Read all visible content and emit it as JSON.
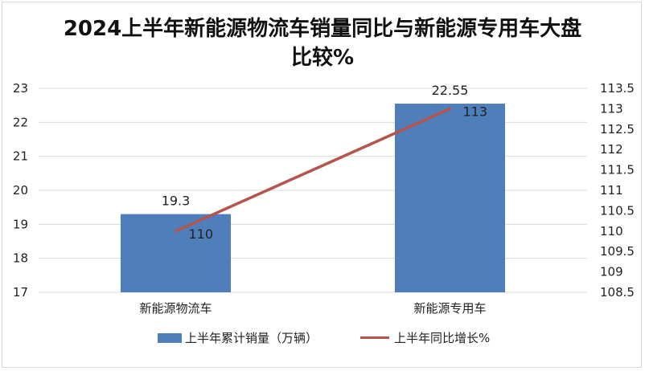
{
  "title_line1": "2024上半年新能源物流车销量同比与新能源专用车大盘",
  "title_line2": "比较%",
  "colors": {
    "bar": "#4f7fba",
    "line": "#b5544b",
    "grid": "#d9d9d9"
  },
  "chart_data": {
    "type": "bar",
    "categories": [
      "新能源物流车",
      "新能源专用车"
    ],
    "series": [
      {
        "name": "上半年累计销量（万辆）",
        "type": "bar",
        "axis": "left",
        "values": [
          19.3,
          22.55
        ],
        "labels": [
          "19.3",
          "22.55"
        ]
      },
      {
        "name": "上半年同比增长%",
        "type": "line",
        "axis": "right",
        "values": [
          110,
          113
        ],
        "labels": [
          "110",
          "113"
        ]
      }
    ],
    "y_left": {
      "ylim": [
        17,
        23
      ],
      "ticks": [
        "17",
        "18",
        "19",
        "20",
        "21",
        "22",
        "23"
      ]
    },
    "y_right": {
      "ylim": [
        108.5,
        113.5
      ],
      "ticks": [
        "108.5",
        "109",
        "109.5",
        "110",
        "110.5",
        "111",
        "111.5",
        "112",
        "112.5",
        "113",
        "113.5"
      ]
    },
    "grid": true,
    "legend": "bottom"
  }
}
